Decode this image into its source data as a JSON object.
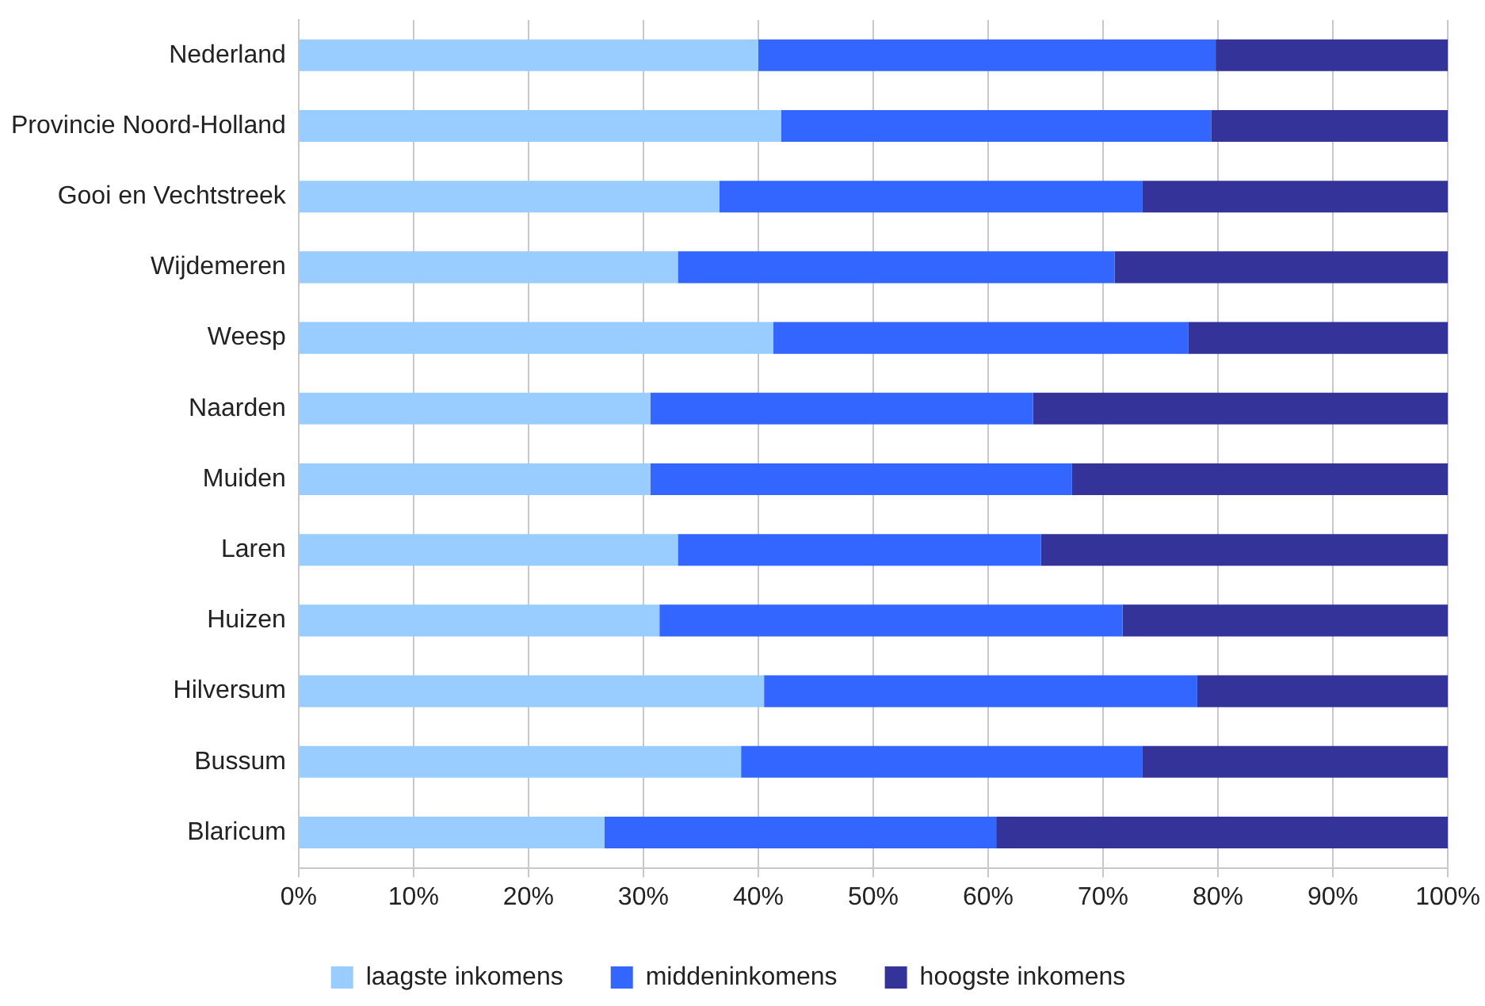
{
  "chart_data": {
    "type": "bar",
    "orientation": "horizontal",
    "stacked": true,
    "categories": [
      "Nederland",
      "Provincie Noord-Holland",
      "Gooi en Vechtstreek",
      "Wijdemeren",
      "Weesp",
      "Naarden",
      "Muiden",
      "Laren",
      "Huizen",
      "Hilversum",
      "Bussum",
      "Blaricum"
    ],
    "series": [
      {
        "name": "laagste inkomens",
        "color": "#99ccff",
        "values": [
          40,
          42,
          36.6,
          33,
          41.3,
          30.6,
          30.6,
          33,
          31.4,
          40.5,
          38.5,
          26.6
        ]
      },
      {
        "name": "middeninkomens",
        "color": "#3366ff",
        "values": [
          39.8,
          37.4,
          36.8,
          38,
          36.1,
          33.3,
          36.7,
          31.6,
          40.3,
          37.7,
          34.9,
          34.1
        ]
      },
      {
        "name": "hoogste inkomens",
        "color": "#333399",
        "values": [
          20.2,
          20.6,
          26.6,
          29,
          22.6,
          36.1,
          32.7,
          35.4,
          28.3,
          21.8,
          26.6,
          39.3
        ]
      }
    ],
    "xlim": [
      0,
      100
    ],
    "xticks": [
      {
        "value": 0,
        "label": "0%"
      },
      {
        "value": 10,
        "label": "10%"
      },
      {
        "value": 20,
        "label": "20%"
      },
      {
        "value": 30,
        "label": "30%"
      },
      {
        "value": 40,
        "label": "40%"
      },
      {
        "value": 50,
        "label": "50%"
      },
      {
        "value": 60,
        "label": "60%"
      },
      {
        "value": 70,
        "label": "70%"
      },
      {
        "value": 80,
        "label": "80%"
      },
      {
        "value": 90,
        "label": "90%"
      },
      {
        "value": 100,
        "label": "100%"
      }
    ],
    "grid": "x",
    "legend": "bottom"
  }
}
